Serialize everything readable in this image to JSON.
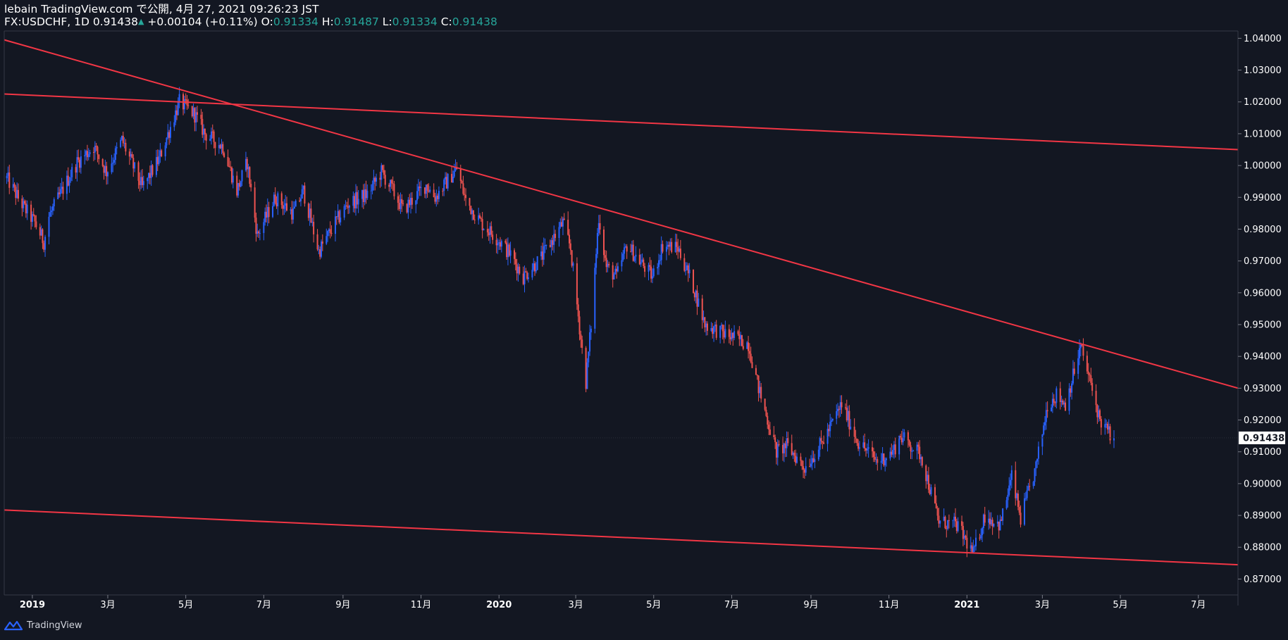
{
  "header": {
    "line1": "lebain TradingView.com で公開, 4月 27, 2021 09:26:23 JST",
    "symbol": "FX:USDCHF, 1D",
    "last": "0.91438",
    "change": "+0.00104 (+0.11%)",
    "o_label": "O:",
    "o_value": "0.91334",
    "h_label": "H:",
    "h_value": "0.91487",
    "l_label": "L:",
    "l_value": "0.91334",
    "c_label": "C:",
    "c_value": "0.91438"
  },
  "footer": {
    "brand": "TradingView"
  },
  "colors": {
    "background": "#131722",
    "up": "#2962ff",
    "down": "#ef5350",
    "trendline": "#f23645",
    "axis_text": "#ffffff",
    "ohlc_value": "#26a69a"
  },
  "chart_data": {
    "type": "candlestick",
    "symbol": "FX:USDCHF",
    "interval": "1D",
    "y_range": [
      0.865,
      1.0423
    ],
    "y_ticks": [
      "1.04000",
      "1.03000",
      "1.02000",
      "1.01000",
      "1.00000",
      "0.99000",
      "0.98000",
      "0.97000",
      "0.96000",
      "0.95000",
      "0.94000",
      "0.93000",
      "0.92000",
      "0.91000",
      "0.90000",
      "0.89000",
      "0.88000",
      "0.87000"
    ],
    "x_ticks": [
      "2019",
      "3月",
      "5月",
      "7月",
      "9月",
      "11月",
      "2020",
      "3月",
      "5月",
      "7月",
      "9月",
      "11月",
      "2021",
      "3月",
      "5月",
      "7月"
    ],
    "x_tick_dates": [
      "2019-01-01",
      "2019-03-01",
      "2019-05-01",
      "2019-07-01",
      "2019-09-01",
      "2019-11-01",
      "2020-01-01",
      "2020-03-01",
      "2020-05-01",
      "2020-07-01",
      "2020-09-01",
      "2020-11-01",
      "2021-01-01",
      "2021-03-01",
      "2021-05-01",
      "2021-07-01"
    ],
    "x_range": [
      "2018-12-10",
      "2021-08-01"
    ],
    "last_price_label": "0.91438",
    "price_path": [
      [
        "2018-12-12",
        0.996
      ],
      [
        "2018-12-25",
        0.987
      ],
      [
        "2019-01-03",
        0.982
      ],
      [
        "2019-01-10",
        0.976
      ],
      [
        "2019-01-14",
        0.984
      ],
      [
        "2019-01-28",
        0.995
      ],
      [
        "2019-02-05",
        1.001
      ],
      [
        "2019-02-18",
        1.006
      ],
      [
        "2019-02-28",
        0.998
      ],
      [
        "2019-03-12",
        1.008
      ],
      [
        "2019-03-28",
        0.993
      ],
      [
        "2019-04-10",
        1.002
      ],
      [
        "2019-04-26",
        1.02
      ],
      [
        "2019-05-08",
        1.016
      ],
      [
        "2019-05-16",
        1.01
      ],
      [
        "2019-05-30",
        1.006
      ],
      [
        "2019-06-10",
        0.992
      ],
      [
        "2019-06-18",
        1.001
      ],
      [
        "2019-06-26",
        0.978
      ],
      [
        "2019-07-10",
        0.99
      ],
      [
        "2019-07-24",
        0.985
      ],
      [
        "2019-08-01",
        0.992
      ],
      [
        "2019-08-13",
        0.973
      ],
      [
        "2019-08-26",
        0.982
      ],
      [
        "2019-09-05",
        0.988
      ],
      [
        "2019-09-20",
        0.991
      ],
      [
        "2019-10-01",
        0.998
      ],
      [
        "2019-10-10",
        0.992
      ],
      [
        "2019-10-18",
        0.986
      ],
      [
        "2019-11-05",
        0.994
      ],
      [
        "2019-11-12",
        0.99
      ],
      [
        "2019-11-29",
        0.999
      ],
      [
        "2019-12-06",
        0.989
      ],
      [
        "2019-12-18",
        0.982
      ],
      [
        "2020-01-02",
        0.976
      ],
      [
        "2020-01-10",
        0.972
      ],
      [
        "2020-01-20",
        0.965
      ],
      [
        "2020-02-03",
        0.971
      ],
      [
        "2020-02-20",
        0.982
      ],
      [
        "2020-02-26",
        0.974
      ],
      [
        "2020-03-06",
        0.942
      ],
      [
        "2020-03-09",
        0.932
      ],
      [
        "2020-03-13",
        0.95
      ],
      [
        "2020-03-19",
        0.984
      ],
      [
        "2020-03-25",
        0.968
      ],
      [
        "2020-04-02",
        0.965
      ],
      [
        "2020-04-10",
        0.975
      ],
      [
        "2020-04-20",
        0.97
      ],
      [
        "2020-04-30",
        0.965
      ],
      [
        "2020-05-08",
        0.975
      ],
      [
        "2020-05-20",
        0.974
      ],
      [
        "2020-06-01",
        0.962
      ],
      [
        "2020-06-10",
        0.95
      ],
      [
        "2020-06-26",
        0.947
      ],
      [
        "2020-07-14",
        0.944
      ],
      [
        "2020-07-22",
        0.93
      ],
      [
        "2020-08-05",
        0.91
      ],
      [
        "2020-08-13",
        0.912
      ],
      [
        "2020-08-27",
        0.905
      ],
      [
        "2020-09-10",
        0.913
      ],
      [
        "2020-09-25",
        0.925
      ],
      [
        "2020-10-08",
        0.913
      ],
      [
        "2020-10-23",
        0.907
      ],
      [
        "2020-11-04",
        0.91
      ],
      [
        "2020-11-10",
        0.915
      ],
      [
        "2020-11-26",
        0.909
      ],
      [
        "2020-12-10",
        0.888
      ],
      [
        "2020-12-24",
        0.887
      ],
      [
        "2021-01-06",
        0.878
      ],
      [
        "2021-01-15",
        0.89
      ],
      [
        "2021-01-27",
        0.887
      ],
      [
        "2021-02-05",
        0.902
      ],
      [
        "2021-02-12",
        0.889
      ],
      [
        "2021-02-24",
        0.905
      ],
      [
        "2021-03-05",
        0.925
      ],
      [
        "2021-03-12",
        0.928
      ],
      [
        "2021-03-19",
        0.925
      ],
      [
        "2021-03-31",
        0.943
      ],
      [
        "2021-04-06",
        0.934
      ],
      [
        "2021-04-15",
        0.92
      ],
      [
        "2021-04-22",
        0.916
      ],
      [
        "2021-04-26",
        0.9143
      ]
    ],
    "trendlines": [
      {
        "from": [
          "2018-12-10",
          1.0395
        ],
        "to": [
          "2021-08-01",
          0.93
        ]
      },
      {
        "from": [
          "2018-12-10",
          1.0225
        ],
        "to": [
          "2021-08-01",
          1.005
        ]
      },
      {
        "from": [
          "2018-12-10",
          0.8917
        ],
        "to": [
          "2021-08-01",
          0.8745
        ]
      }
    ]
  }
}
